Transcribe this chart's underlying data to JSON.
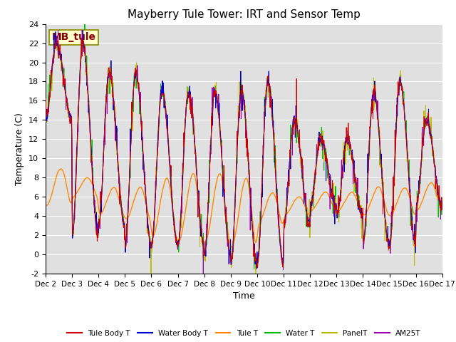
{
  "title": "Mayberry Tule Tower: IRT and Sensor Temp",
  "ylabel": "Temperature (C)",
  "xlabel": "Time",
  "annotation": "MB_tule",
  "ylim": [
    -2,
    24
  ],
  "yticks": [
    -2,
    0,
    2,
    4,
    6,
    8,
    10,
    12,
    14,
    16,
    18,
    20,
    22,
    24
  ],
  "xtick_labels": [
    "Dec 2",
    "Dec 3",
    "Dec 4",
    "Dec 5",
    "Dec 6",
    "Dec 7",
    "Dec 8",
    "Dec 9",
    "Dec 10",
    "Dec 11",
    "Dec 12",
    "Dec 13",
    "Dec 14",
    "Dec 15",
    "Dec 16",
    "Dec 17"
  ],
  "legend": [
    {
      "label": "Tule Body T",
      "color": "#cc0000"
    },
    {
      "label": "Water Body T",
      "color": "#0000cc"
    },
    {
      "label": "Tule T",
      "color": "#ff8800"
    },
    {
      "label": "Water T",
      "color": "#00bb00"
    },
    {
      "label": "PanelT",
      "color": "#bbbb00"
    },
    {
      "label": "AM25T",
      "color": "#9900aa"
    }
  ],
  "background_color": "#e0e0e0",
  "title_fontsize": 11,
  "annotation_bg": "#ffffcc",
  "annotation_fg": "#880000",
  "figsize": [
    6.4,
    4.8
  ],
  "dpi": 100
}
